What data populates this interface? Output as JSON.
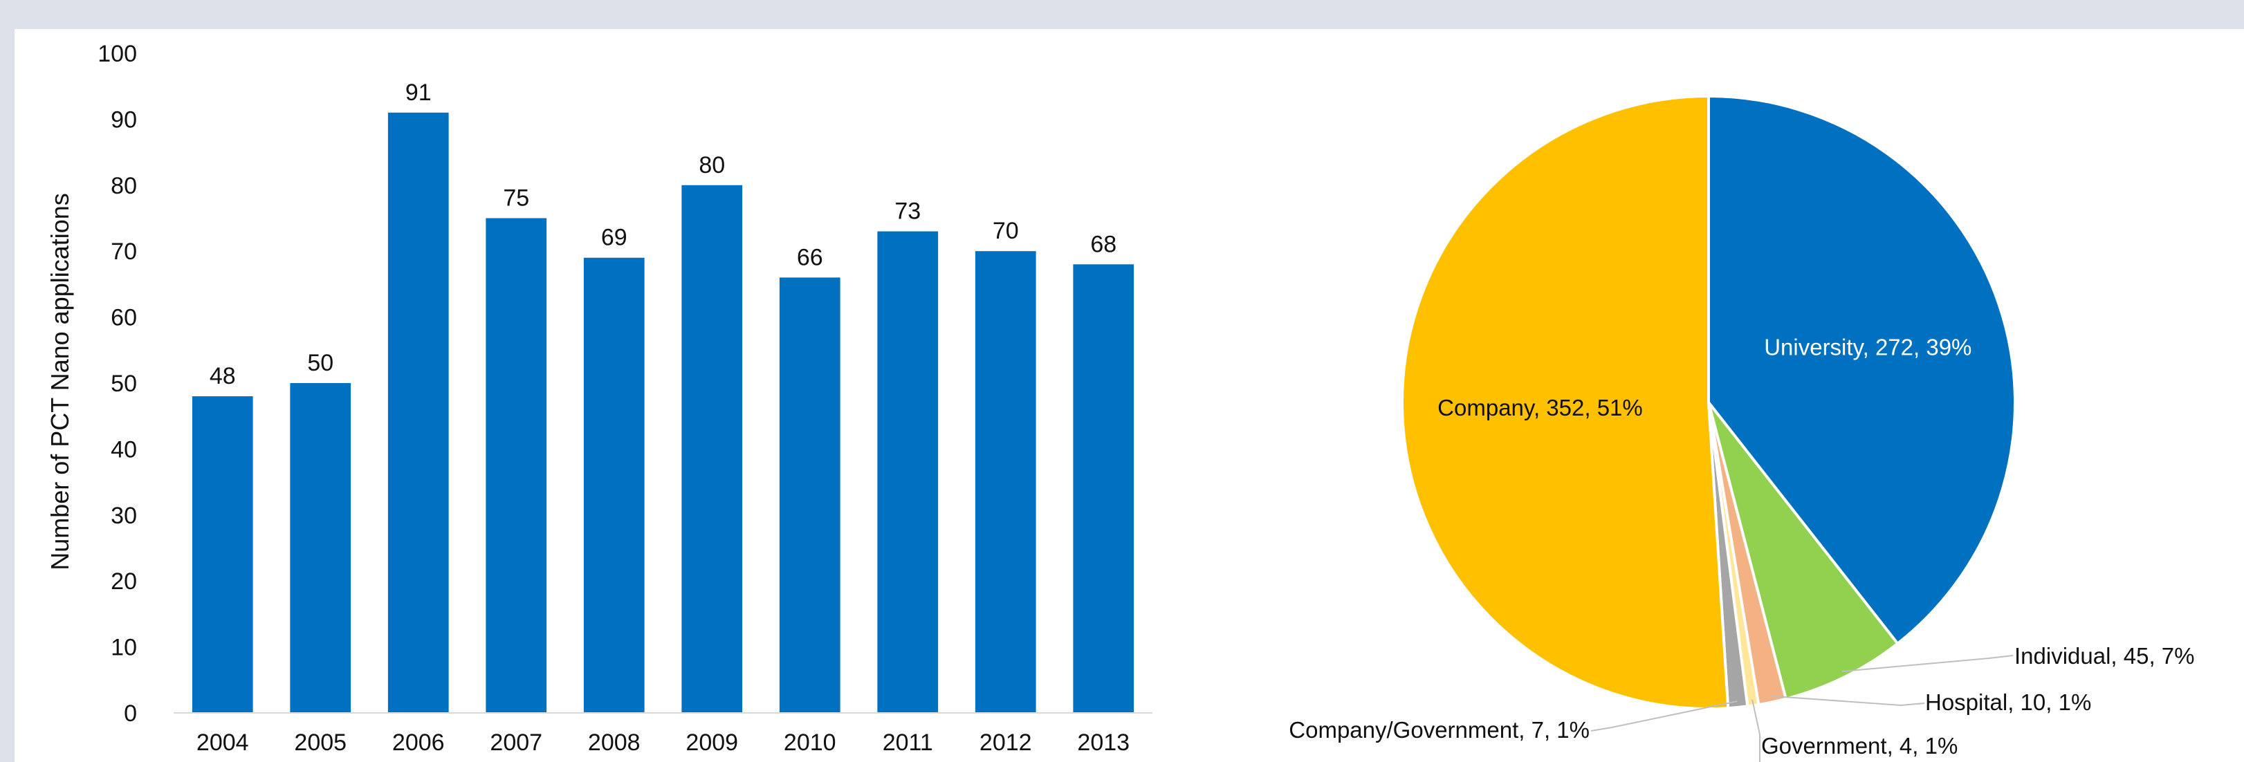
{
  "chart_data": [
    {
      "type": "bar",
      "title": "",
      "xlabel": "",
      "ylabel": "Number of PCT Nano applications",
      "ylim": [
        0,
        100
      ],
      "yticks": [
        "0",
        "10",
        "20",
        "30",
        "40",
        "50",
        "60",
        "70",
        "80",
        "90",
        "100"
      ],
      "categories": [
        "2004",
        "2005",
        "2006",
        "2007",
        "2008",
        "2009",
        "2010",
        "2011",
        "2012",
        "2013"
      ],
      "values": [
        48,
        50,
        91,
        75,
        69,
        80,
        66,
        73,
        70,
        68
      ],
      "data_labels": [
        "48",
        "50",
        "91",
        "75",
        "69",
        "80",
        "66",
        "73",
        "70",
        "68"
      ],
      "grid": false,
      "legend": "none",
      "bar_color": "#0070c0"
    },
    {
      "type": "pie",
      "title": "",
      "legend": "none",
      "slices": [
        {
          "name": "University",
          "value": 272,
          "percent": 39,
          "label": "University, 272, 39%",
          "color": "#0070c0"
        },
        {
          "name": "Individual",
          "value": 45,
          "percent": 7,
          "label": "Individual, 45, 7%",
          "color": "#92d050"
        },
        {
          "name": "Hospital",
          "value": 10,
          "percent": 1,
          "label": "Hospital, 10, 1%",
          "color": "#f4b183"
        },
        {
          "name": "Government",
          "value": 4,
          "percent": 1,
          "label": "Government, 4, 1%",
          "color": "#ffe699"
        },
        {
          "name": "Company/Government",
          "value": 7,
          "percent": 1,
          "label": "Company/Government, 7, 1%",
          "color": "#a5a5a5"
        },
        {
          "name": "Company",
          "value": 352,
          "percent": 51,
          "label": "Company, 352, 51%",
          "color": "#ffc000"
        }
      ]
    }
  ]
}
